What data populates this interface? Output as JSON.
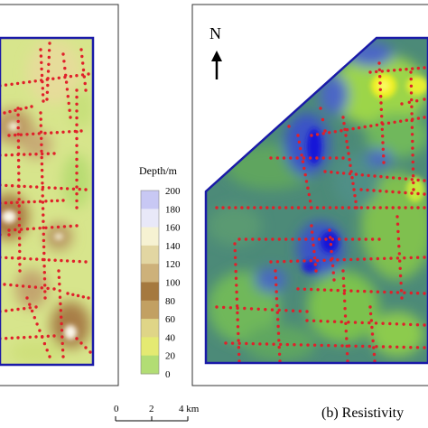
{
  "legend": {
    "title": "Depth/m",
    "ticks": [
      "200",
      "180",
      "160",
      "140",
      "120",
      "100",
      "80",
      "60",
      "40",
      "20",
      "0"
    ],
    "colors": [
      "#c8c8f4",
      "#e8e8f8",
      "#f6f2d2",
      "#e2d6a2",
      "#cdb17a",
      "#a5793f",
      "#c2a062",
      "#dfd587",
      "#e4ea72",
      "#b2dd74",
      "#86cc58"
    ]
  },
  "north_arrow": {
    "label": "N"
  },
  "scale_bar": {
    "ticks": [
      "0",
      "2",
      "4 km"
    ]
  },
  "panel_b": {
    "caption": "(b) Resistivity"
  },
  "colors": {
    "boundary": "#1a1aa8",
    "survey_point": "#e0202a",
    "frame": "#333333"
  }
}
